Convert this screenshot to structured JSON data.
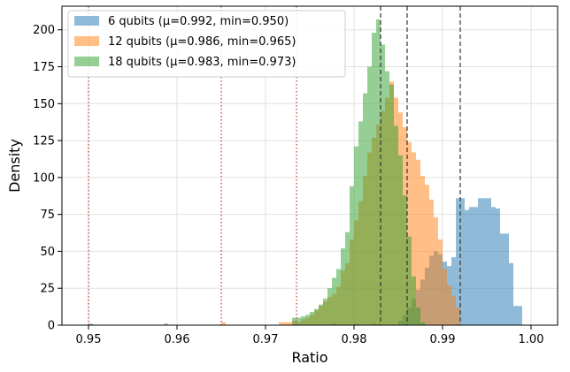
{
  "chart_data": {
    "type": "histogram",
    "xlabel": "Ratio",
    "ylabel": "Density",
    "xlim": [
      0.947,
      1.003
    ],
    "ylim": [
      0,
      216
    ],
    "x_ticks": [
      0.95,
      0.96,
      0.97,
      0.98,
      0.99,
      1.0
    ],
    "x_tick_labels": [
      "0.95",
      "0.96",
      "0.97",
      "0.98",
      "0.99",
      "1.00"
    ],
    "y_ticks": [
      0,
      25,
      50,
      75,
      100,
      125,
      150,
      175,
      200
    ],
    "y_tick_labels": [
      "0",
      "25",
      "50",
      "75",
      "100",
      "125",
      "150",
      "175",
      "200"
    ],
    "grid": true,
    "legend_position": "top-left",
    "legend": [
      {
        "name": "6 qubits (μ=0.992, min=0.950)",
        "color": "#1f77b4"
      },
      {
        "name": "12 qubits (μ=0.986, min=0.965)",
        "color": "#ff7f0e"
      },
      {
        "name": "18 qubits (μ=0.983, min=0.973)",
        "color": "#2ca02c"
      }
    ],
    "series": [
      {
        "name": "6 qubits (μ=0.992, min=0.950)",
        "color": "#1f77b4",
        "alpha": 0.5,
        "mean": 0.992,
        "min": 0.95,
        "bin_edges": [
          0.95,
          0.9505,
          0.9585,
          0.959,
          0.9775,
          0.978,
          0.98,
          0.9805,
          0.982,
          0.9825,
          0.985,
          0.9855,
          0.986,
          0.9865,
          0.987,
          0.9875,
          0.988,
          0.9885,
          0.989,
          0.9895,
          0.99,
          0.9905,
          0.991,
          0.9915,
          0.992,
          0.9925,
          0.993,
          0.9935,
          0.994,
          0.9945,
          0.995,
          0.9955,
          0.996,
          0.9965,
          0.997,
          0.9975,
          0.998,
          0.9985,
          0.999
        ],
        "bin_values": [
          1,
          0,
          1,
          0,
          1,
          0,
          1,
          0,
          1,
          0,
          3,
          7,
          12,
          18,
          24,
          31,
          39,
          47,
          50,
          48,
          43,
          40,
          46,
          86,
          86,
          78,
          80,
          80,
          86,
          86,
          86,
          80,
          79,
          62,
          62,
          42,
          13,
          13
        ]
      },
      {
        "name": "12 qubits (μ=0.986, min=0.965)",
        "color": "#ff7f0e",
        "alpha": 0.5,
        "mean": 0.986,
        "min": 0.965,
        "bin_edges": [
          0.965,
          0.9655,
          0.9715,
          0.972,
          0.9725,
          0.973,
          0.9735,
          0.974,
          0.9745,
          0.975,
          0.9755,
          0.976,
          0.9765,
          0.977,
          0.9775,
          0.978,
          0.9785,
          0.979,
          0.9795,
          0.98,
          0.9805,
          0.981,
          0.9815,
          0.982,
          0.9825,
          0.983,
          0.9835,
          0.984,
          0.9845,
          0.985,
          0.9855,
          0.986,
          0.9865,
          0.987,
          0.9875,
          0.988,
          0.9885,
          0.989,
          0.9895,
          0.99,
          0.9905,
          0.991,
          0.9915,
          0.992
        ],
        "bin_values": [
          2,
          0,
          2,
          2,
          2,
          3,
          2,
          4,
          5,
          7,
          10,
          13,
          16,
          19,
          21,
          26,
          37,
          42,
          58,
          71,
          84,
          101,
          117,
          127,
          136,
          145,
          154,
          165,
          154,
          144,
          134,
          124,
          117,
          112,
          101,
          95,
          85,
          73,
          58,
          38,
          27,
          20,
          12
        ]
      },
      {
        "name": "18 qubits (μ=0.983, min=0.973)",
        "color": "#2ca02c",
        "alpha": 0.5,
        "mean": 0.983,
        "min": 0.973,
        "bin_edges": [
          0.973,
          0.9735,
          0.974,
          0.9745,
          0.975,
          0.9755,
          0.976,
          0.9765,
          0.977,
          0.9775,
          0.978,
          0.9785,
          0.979,
          0.9795,
          0.98,
          0.9805,
          0.981,
          0.9815,
          0.982,
          0.9825,
          0.983,
          0.9835,
          0.984,
          0.9845,
          0.985,
          0.9855,
          0.986,
          0.9865,
          0.987,
          0.9875,
          0.988
        ],
        "bin_values": [
          5,
          5,
          6,
          7,
          9,
          11,
          14,
          18,
          25,
          32,
          38,
          52,
          63,
          94,
          121,
          138,
          157,
          175,
          198,
          207,
          190,
          172,
          163,
          135,
          115,
          88,
          60,
          33,
          12,
          2
        ]
      }
    ],
    "reference_lines": [
      {
        "x": 0.95,
        "color": "#d62728",
        "style": "dotted"
      },
      {
        "x": 0.965,
        "color": "#d62728",
        "style": "dotted"
      },
      {
        "x": 0.9735,
        "color": "#d62728",
        "style": "dotted"
      },
      {
        "x": 0.983,
        "color": "#333333",
        "style": "dashed"
      },
      {
        "x": 0.986,
        "color": "#333333",
        "style": "dashed"
      },
      {
        "x": 0.992,
        "color": "#333333",
        "style": "dashed"
      }
    ]
  }
}
